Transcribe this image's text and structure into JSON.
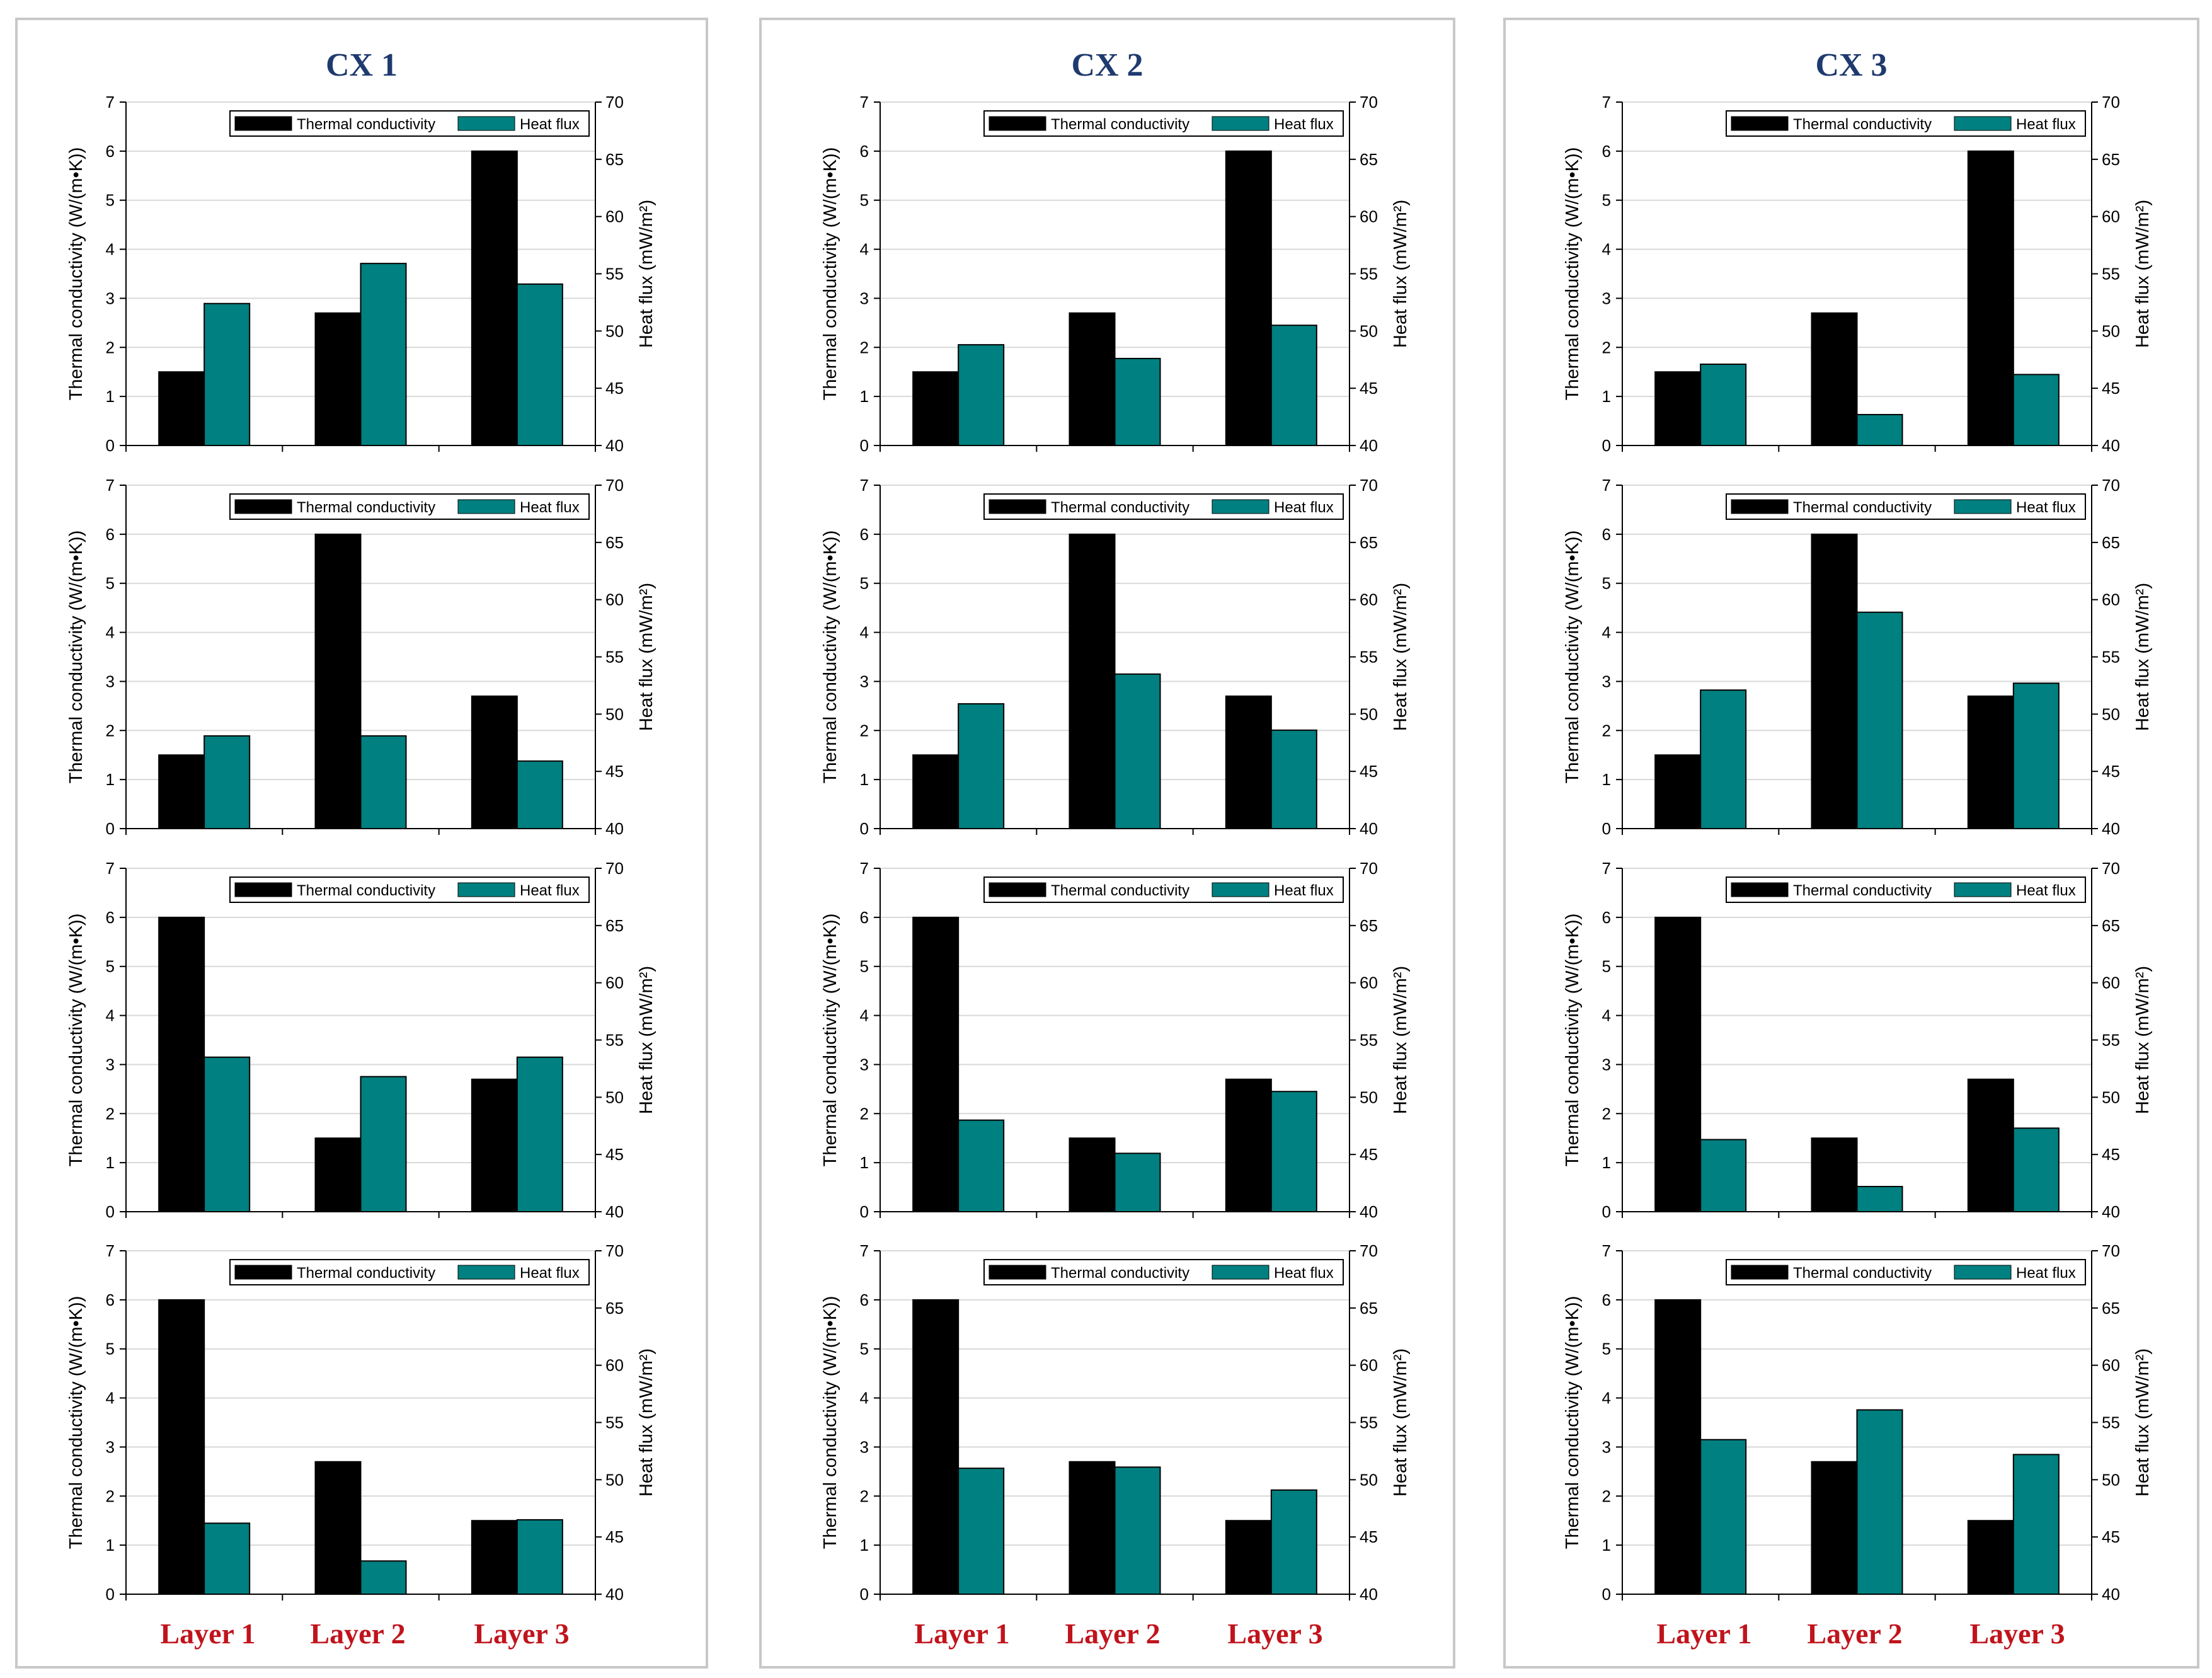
{
  "colors": {
    "conductivity": "#000000",
    "heat_flux": "#008080",
    "title": "#1f3a6e",
    "layer_label": "#c0141c",
    "gridline": "#d9d9d9",
    "border": "#c8c8c8"
  },
  "legend": {
    "conductivity": "Thermal conductivity",
    "heat_flux": "Heat flux"
  },
  "axes": {
    "y_left_label": "Thermal conductivity (W/(m•K))",
    "y_right_label": "Heat flux (mW/m²)",
    "y_left_ticks": [
      "0",
      "1",
      "2",
      "3",
      "4",
      "5",
      "6",
      "7"
    ],
    "y_right_ticks": [
      "40",
      "45",
      "50",
      "55",
      "60",
      "65",
      "70"
    ],
    "y_left_range": [
      0,
      7
    ],
    "y_right_range": [
      40,
      70
    ]
  },
  "columns": [
    {
      "title": "CX 1",
      "layers": [
        "Layer 1",
        "Layer 2",
        "Layer 3"
      ]
    },
    {
      "title": "CX 2",
      "layers": [
        "Layer 1",
        "Layer 2",
        "Layer 3"
      ]
    },
    {
      "title": "CX 3",
      "layers": [
        "Layer 1",
        "Layer 2",
        "Layer 3"
      ]
    }
  ],
  "chart_data": [
    {
      "type": "bar",
      "column": "CX 1",
      "row": 1,
      "categories": [
        "Layer 1",
        "Layer 2",
        "Layer 3"
      ],
      "series": [
        {
          "name": "Thermal conductivity",
          "axis": "left",
          "values": [
            1.5,
            2.7,
            6.0
          ]
        },
        {
          "name": "Heat flux",
          "axis": "right",
          "values": [
            52.4,
            55.9,
            54.1
          ]
        }
      ],
      "ylim_left": [
        0,
        7
      ],
      "ylim_right": [
        40,
        70
      ],
      "legend": "top-right"
    },
    {
      "type": "bar",
      "column": "CX 2",
      "row": 1,
      "categories": [
        "Layer 1",
        "Layer 2",
        "Layer 3"
      ],
      "series": [
        {
          "name": "Thermal conductivity",
          "axis": "left",
          "values": [
            1.5,
            2.7,
            6.0
          ]
        },
        {
          "name": "Heat flux",
          "axis": "right",
          "values": [
            48.8,
            47.6,
            50.5
          ]
        }
      ],
      "ylim_left": [
        0,
        7
      ],
      "ylim_right": [
        40,
        70
      ],
      "legend": "top-right"
    },
    {
      "type": "bar",
      "column": "CX 3",
      "row": 1,
      "categories": [
        "Layer 1",
        "Layer 2",
        "Layer 3"
      ],
      "series": [
        {
          "name": "Thermal conductivity",
          "axis": "left",
          "values": [
            1.5,
            2.7,
            6.0
          ]
        },
        {
          "name": "Heat flux",
          "axis": "right",
          "values": [
            47.1,
            42.7,
            46.2
          ]
        }
      ],
      "ylim_left": [
        0,
        7
      ],
      "ylim_right": [
        40,
        70
      ],
      "legend": "top-right"
    },
    {
      "type": "bar",
      "column": "CX 1",
      "row": 2,
      "categories": [
        "Layer 1",
        "Layer 2",
        "Layer 3"
      ],
      "series": [
        {
          "name": "Thermal conductivity",
          "axis": "left",
          "values": [
            1.5,
            6.0,
            2.7
          ]
        },
        {
          "name": "Heat flux",
          "axis": "right",
          "values": [
            48.1,
            48.1,
            45.9
          ]
        }
      ],
      "ylim_left": [
        0,
        7
      ],
      "ylim_right": [
        40,
        70
      ],
      "legend": "top-right"
    },
    {
      "type": "bar",
      "column": "CX 2",
      "row": 2,
      "categories": [
        "Layer 1",
        "Layer 2",
        "Layer 3"
      ],
      "series": [
        {
          "name": "Thermal conductivity",
          "axis": "left",
          "values": [
            1.5,
            6.0,
            2.7
          ]
        },
        {
          "name": "Heat flux",
          "axis": "right",
          "values": [
            50.9,
            53.5,
            48.6
          ]
        }
      ],
      "ylim_left": [
        0,
        7
      ],
      "ylim_right": [
        40,
        70
      ],
      "legend": "top-right"
    },
    {
      "type": "bar",
      "column": "CX 3",
      "row": 2,
      "categories": [
        "Layer 1",
        "Layer 2",
        "Layer 3"
      ],
      "series": [
        {
          "name": "Thermal conductivity",
          "axis": "left",
          "values": [
            1.5,
            6.0,
            2.7
          ]
        },
        {
          "name": "Heat flux",
          "axis": "right",
          "values": [
            52.1,
            58.9,
            52.7
          ]
        }
      ],
      "ylim_left": [
        0,
        7
      ],
      "ylim_right": [
        40,
        70
      ],
      "legend": "top-right"
    },
    {
      "type": "bar",
      "column": "CX 1",
      "row": 3,
      "categories": [
        "Layer 1",
        "Layer 2",
        "Layer 3"
      ],
      "series": [
        {
          "name": "Thermal conductivity",
          "axis": "left",
          "values": [
            6.0,
            1.5,
            2.7
          ]
        },
        {
          "name": "Heat flux",
          "axis": "right",
          "values": [
            53.5,
            51.8,
            53.5
          ]
        }
      ],
      "ylim_left": [
        0,
        7
      ],
      "ylim_right": [
        40,
        70
      ],
      "legend": "top-right"
    },
    {
      "type": "bar",
      "column": "CX 2",
      "row": 3,
      "categories": [
        "Layer 1",
        "Layer 2",
        "Layer 3"
      ],
      "series": [
        {
          "name": "Thermal conductivity",
          "axis": "left",
          "values": [
            6.0,
            1.5,
            2.7
          ]
        },
        {
          "name": "Heat flux",
          "axis": "right",
          "values": [
            48.0,
            45.1,
            50.5
          ]
        }
      ],
      "ylim_left": [
        0,
        7
      ],
      "ylim_right": [
        40,
        70
      ],
      "legend": "top-right"
    },
    {
      "type": "bar",
      "column": "CX 3",
      "row": 3,
      "categories": [
        "Layer 1",
        "Layer 2",
        "Layer 3"
      ],
      "series": [
        {
          "name": "Thermal conductivity",
          "axis": "left",
          "values": [
            6.0,
            1.5,
            2.7
          ]
        },
        {
          "name": "Heat flux",
          "axis": "right",
          "values": [
            46.3,
            42.2,
            47.3
          ]
        }
      ],
      "ylim_left": [
        0,
        7
      ],
      "ylim_right": [
        40,
        70
      ],
      "legend": "top-right"
    },
    {
      "type": "bar",
      "column": "CX 1",
      "row": 4,
      "categories": [
        "Layer 1",
        "Layer 2",
        "Layer 3"
      ],
      "series": [
        {
          "name": "Thermal conductivity",
          "axis": "left",
          "values": [
            6.0,
            2.7,
            1.5
          ]
        },
        {
          "name": "Heat flux",
          "axis": "right",
          "values": [
            46.2,
            42.9,
            46.5
          ]
        }
      ],
      "ylim_left": [
        0,
        7
      ],
      "ylim_right": [
        40,
        70
      ],
      "legend": "top-right"
    },
    {
      "type": "bar",
      "column": "CX 2",
      "row": 4,
      "categories": [
        "Layer 1",
        "Layer 2",
        "Layer 3"
      ],
      "series": [
        {
          "name": "Thermal conductivity",
          "axis": "left",
          "values": [
            6.0,
            2.7,
            1.5
          ]
        },
        {
          "name": "Heat flux",
          "axis": "right",
          "values": [
            51.0,
            51.1,
            49.1
          ]
        }
      ],
      "ylim_left": [
        0,
        7
      ],
      "ylim_right": [
        40,
        70
      ],
      "legend": "top-right"
    },
    {
      "type": "bar",
      "column": "CX 3",
      "row": 4,
      "categories": [
        "Layer 1",
        "Layer 2",
        "Layer 3"
      ],
      "series": [
        {
          "name": "Thermal conductivity",
          "axis": "left",
          "values": [
            6.0,
            2.7,
            1.5
          ]
        },
        {
          "name": "Heat flux",
          "axis": "right",
          "values": [
            53.5,
            56.1,
            52.2
          ]
        }
      ],
      "ylim_left": [
        0,
        7
      ],
      "ylim_right": [
        40,
        70
      ],
      "legend": "top-right"
    }
  ]
}
